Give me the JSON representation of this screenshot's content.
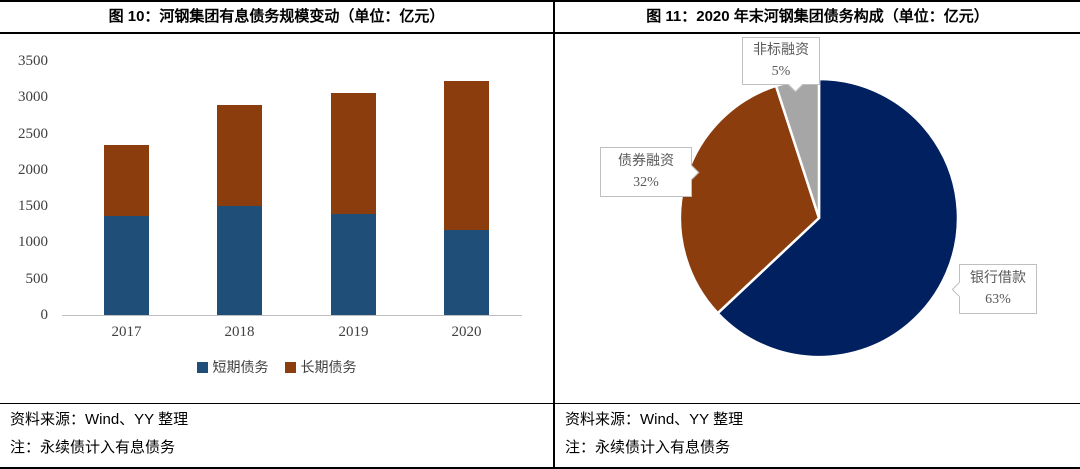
{
  "left_panel": {
    "title": "图 10：河钢集团有息债务规模变动（单位：亿元）",
    "source": "资料来源：Wind、YY 整理",
    "note": "注：永续债计入有息债务"
  },
  "right_panel": {
    "title": "图 11：2020 年末河钢集团债务构成（单位：亿元）",
    "source": "资料来源：Wind、YY 整理",
    "note": "注：永续债计入有息债务"
  },
  "chart_data": [
    {
      "type": "bar",
      "stacked": true,
      "title": "图 10：河钢集团有息债务规模变动（单位：亿元）",
      "categories": [
        "2017",
        "2018",
        "2019",
        "2020"
      ],
      "series": [
        {
          "name": "短期债务",
          "color": "#1F4E79",
          "values": [
            1370,
            1500,
            1390,
            1170
          ]
        },
        {
          "name": "长期债务",
          "color": "#8B3D0E",
          "values": [
            980,
            1400,
            1670,
            2050
          ]
        }
      ],
      "totals": [
        2350,
        2900,
        3060,
        3220
      ],
      "xlabel": "",
      "ylabel": "",
      "ylim": [
        0,
        3500
      ],
      "yticks": [
        0,
        500,
        1000,
        1500,
        2000,
        2500,
        3000,
        3500
      ],
      "grid": false,
      "legend_position": "bottom"
    },
    {
      "type": "pie",
      "title": "图 11：2020 年末河钢集团债务构成（单位：亿元）",
      "start_angle_deg": 0,
      "direction": "clockwise",
      "slices": [
        {
          "label": "银行借款",
          "pct": 63,
          "pct_label": "63%",
          "color": "#002060"
        },
        {
          "label": "债券融资",
          "pct": 32,
          "pct_label": "32%",
          "color": "#8B3D0E"
        },
        {
          "label": "非标融资",
          "pct": 5,
          "pct_label": "5%",
          "color": "#A6A6A6"
        }
      ]
    }
  ],
  "colors": {
    "short_term_blue": "#1F4E79",
    "long_term_brown": "#8B3D0E",
    "pie_navy": "#002060",
    "pie_gray": "#A6A6A6",
    "axis_line": "#BFBFBF",
    "border": "#000000",
    "callout_text": "#595959"
  }
}
